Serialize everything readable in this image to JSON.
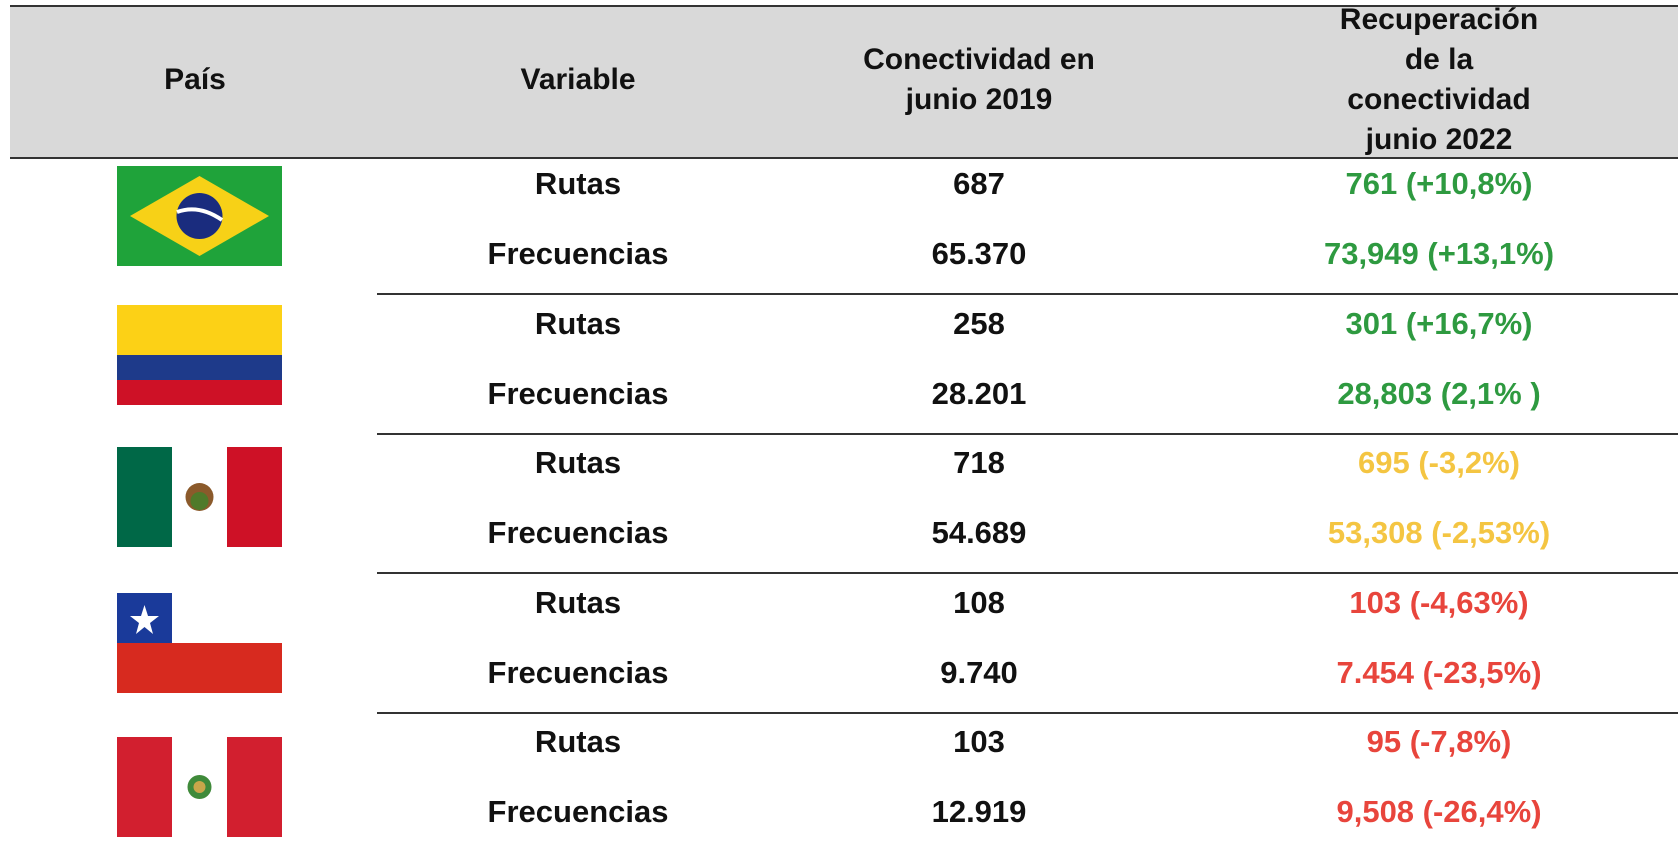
{
  "table": {
    "headers": [
      "País",
      "Variable",
      "Conectividad en\njunio 2019",
      "Recuperación de la\nconectividad junio 2022"
    ],
    "groups": [
      {
        "rows": [
          {
            "variable": "Rutas",
            "baseline": "687",
            "recovery": "761 (+10,8%)",
            "color": "#2e9a40"
          },
          {
            "variable": "Frecuencias",
            "baseline": "65.370",
            "recovery": "73,949  (+13,1%)",
            "color": "#2e9a40"
          }
        ]
      },
      {
        "rows": [
          {
            "variable": "Rutas",
            "baseline": "258",
            "recovery": "301 (+16,7%)",
            "color": "#2e9a40"
          },
          {
            "variable": "Frecuencias",
            "baseline": "28.201",
            "recovery": "28,803  (2,1% )",
            "color": "#2e9a40"
          }
        ]
      },
      {
        "rows": [
          {
            "variable": "Rutas",
            "baseline": "718",
            "recovery": "695  (-3,2%)",
            "color": "#f4c542"
          },
          {
            "variable": "Frecuencias",
            "baseline": "54.689",
            "recovery": "53,308 (-2,53%)",
            "color": "#f4c542"
          }
        ]
      },
      {
        "rows": [
          {
            "variable": "Rutas",
            "baseline": "108",
            "recovery": "103 (-4,63%)",
            "color": "#e8453c"
          },
          {
            "variable": "Frecuencias",
            "baseline": "9.740",
            "recovery": "7.454 (-23,5%)",
            "color": "#e8453c"
          }
        ]
      },
      {
        "rows": [
          {
            "variable": "Rutas",
            "baseline": "103",
            "recovery": "95 (-7,8%)",
            "color": "#e8453c"
          },
          {
            "variable": "Frecuencias",
            "baseline": "12.919",
            "recovery": "9,508 (-26,4%)",
            "color": "#e8453c"
          }
        ]
      }
    ]
  }
}
